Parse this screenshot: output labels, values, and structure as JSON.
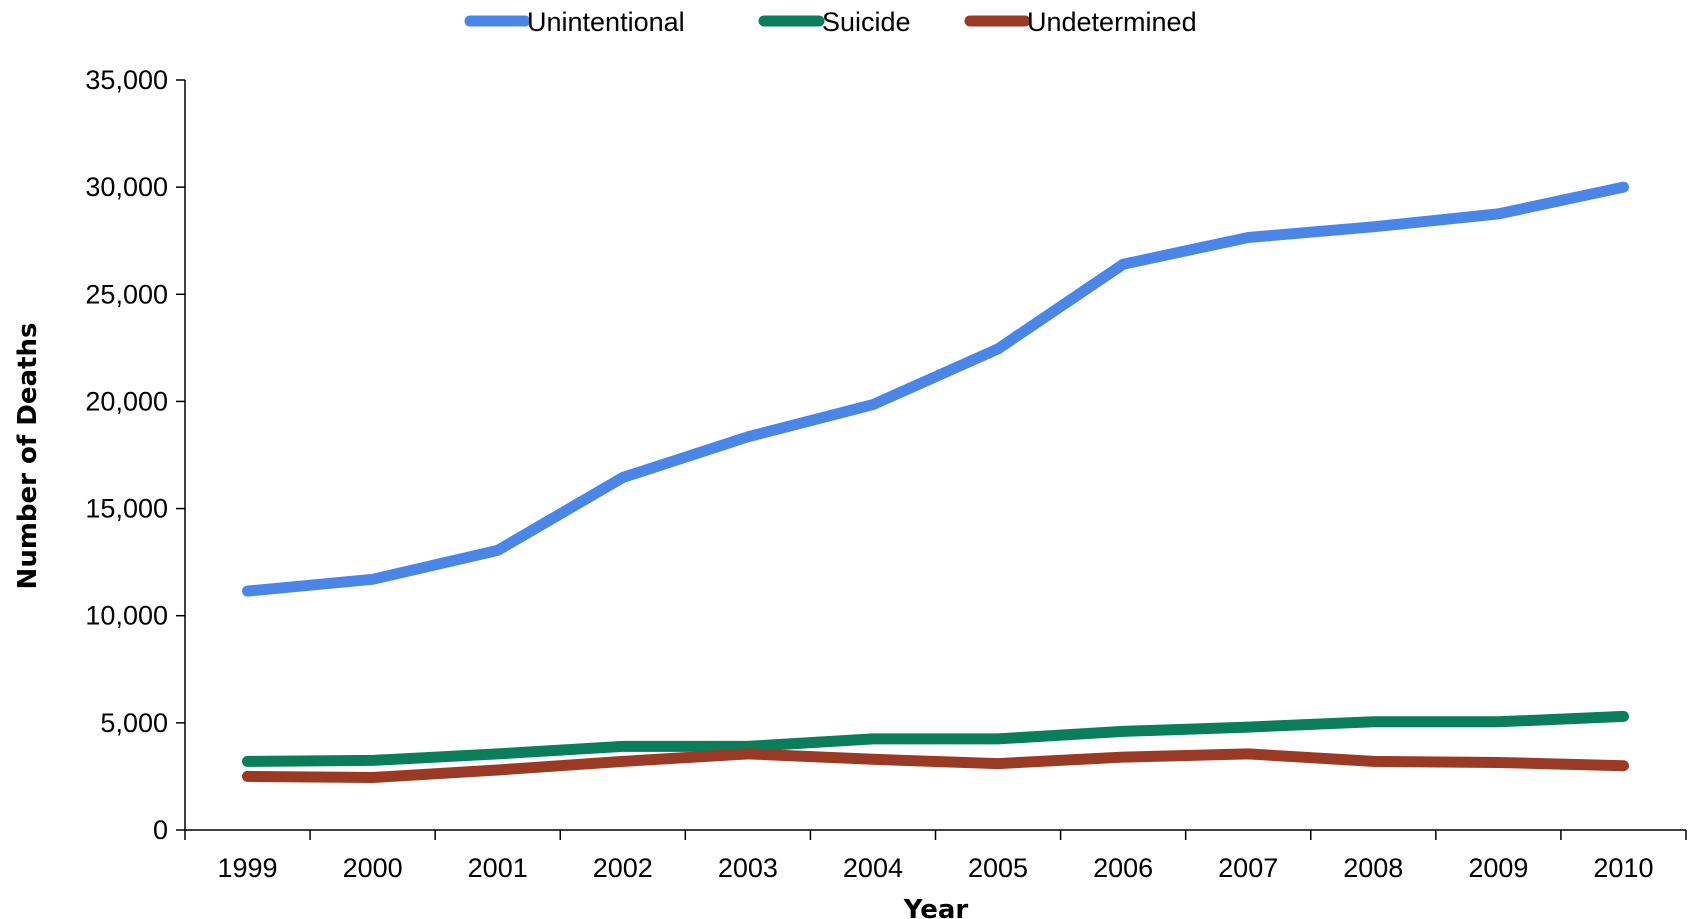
{
  "chart_data": {
    "type": "line",
    "xlabel": "Year",
    "ylabel": "Number of Deaths",
    "categories": [
      "1999",
      "2000",
      "2001",
      "2002",
      "2003",
      "2004",
      "2005",
      "2006",
      "2007",
      "2008",
      "2009",
      "2010"
    ],
    "ylim": [
      0,
      35000
    ],
    "yticks": [
      0,
      5000,
      10000,
      15000,
      20000,
      25000,
      30000,
      35000
    ],
    "ytick_labels": [
      "0",
      "5,000",
      "10,000",
      "15,000",
      "20,000",
      "25,000",
      "30,000",
      "35,000"
    ],
    "grid": false,
    "legend_position": "top",
    "series": [
      {
        "name": "Unintentional",
        "color": "#4A86E8",
        "values": [
          11150,
          11700,
          13050,
          16450,
          18350,
          19850,
          22450,
          26400,
          27650,
          28150,
          28750,
          30000
        ]
      },
      {
        "name": "Suicide",
        "color": "#0A7D5A",
        "values": [
          3200,
          3250,
          3550,
          3900,
          3900,
          4250,
          4250,
          4600,
          4800,
          5050,
          5050,
          5300
        ]
      },
      {
        "name": "Undetermined",
        "color": "#9B3A24",
        "values": [
          2500,
          2450,
          2800,
          3200,
          3550,
          3300,
          3100,
          3400,
          3550,
          3200,
          3150,
          3000
        ]
      }
    ]
  }
}
